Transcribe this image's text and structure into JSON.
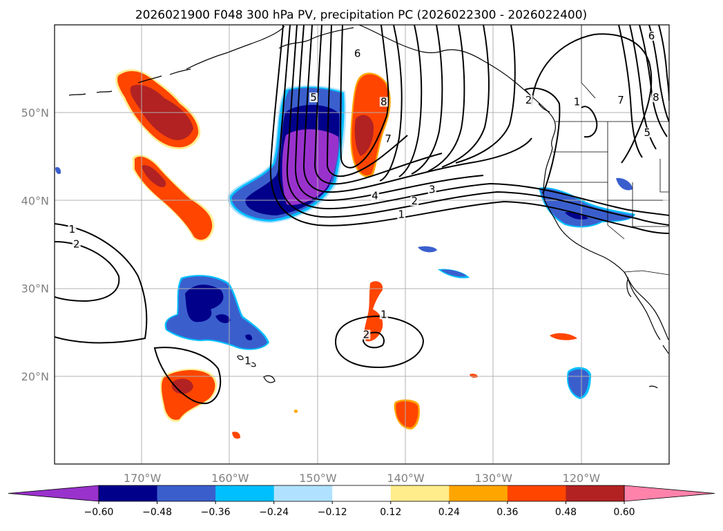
{
  "chart_data": {
    "type": "heatmap",
    "title": "2026021900 F048 300 hPa PV, precipitation PC (2026022300 - 2026022400)",
    "x_ticks": [
      {
        "value": -170,
        "label": "170°W"
      },
      {
        "value": -160,
        "label": "160°W"
      },
      {
        "value": -150,
        "label": "150°W"
      },
      {
        "value": -140,
        "label": "140°W"
      },
      {
        "value": -130,
        "label": "130°W"
      },
      {
        "value": -120,
        "label": "120°W"
      }
    ],
    "y_ticks": [
      {
        "value": 20,
        "label": "20°N"
      },
      {
        "value": 30,
        "label": "30°N"
      },
      {
        "value": 40,
        "label": "40°N"
      },
      {
        "value": 50,
        "label": "50°N"
      }
    ],
    "xlim": [
      -180,
      -110
    ],
    "ylim": [
      10,
      60
    ],
    "colorbar": {
      "levels": [
        -0.6,
        -0.48,
        -0.36,
        -0.24,
        -0.12,
        0.12,
        0.24,
        0.36,
        0.48,
        0.6
      ],
      "labels": [
        "−0.60",
        "−0.48",
        "−0.36",
        "−0.24",
        "−0.12",
        "0.12",
        "0.24",
        "0.36",
        "0.48",
        "0.60"
      ],
      "colors": [
        "#9932cc",
        "#00008b",
        "#3a5fcd",
        "#00bfff",
        "#b0e2ff",
        "#ffffff",
        "#ffec8b",
        "#ffa500",
        "#ff4500",
        "#b22222",
        "#ff82ab"
      ]
    },
    "pv_contour_labels": [
      {
        "text": "1",
        "lon": -178,
        "lat": 36.5
      },
      {
        "text": "2",
        "lon": -177.5,
        "lat": 34.8
      },
      {
        "text": "1",
        "lon": -158,
        "lat": 21.5
      },
      {
        "text": "1",
        "lon": -142.5,
        "lat": 26.8
      },
      {
        "text": "2",
        "lon": -144.5,
        "lat": 24.5
      },
      {
        "text": "4",
        "lon": -143.5,
        "lat": 40.3
      },
      {
        "text": "3",
        "lon": -137,
        "lat": 41
      },
      {
        "text": "2",
        "lon": -139,
        "lat": 39.7
      },
      {
        "text": "1",
        "lon": -140.5,
        "lat": 38.2
      },
      {
        "text": "7",
        "lon": -142,
        "lat": 46.8
      },
      {
        "text": "8",
        "lon": -142.5,
        "lat": 51
      },
      {
        "text": "6",
        "lon": -145.5,
        "lat": 56.5
      },
      {
        "text": "5",
        "lon": -150.5,
        "lat": 51.5
      },
      {
        "text": "2",
        "lon": -126,
        "lat": 51.2
      },
      {
        "text": "1",
        "lon": -120.5,
        "lat": 51
      },
      {
        "text": "7",
        "lon": -115.5,
        "lat": 51.2
      },
      {
        "text": "8",
        "lon": -111.5,
        "lat": 51.5
      },
      {
        "text": "5",
        "lon": -112.5,
        "lat": 47.5
      },
      {
        "text": "6",
        "lon": -112,
        "lat": 58.5
      }
    ]
  }
}
